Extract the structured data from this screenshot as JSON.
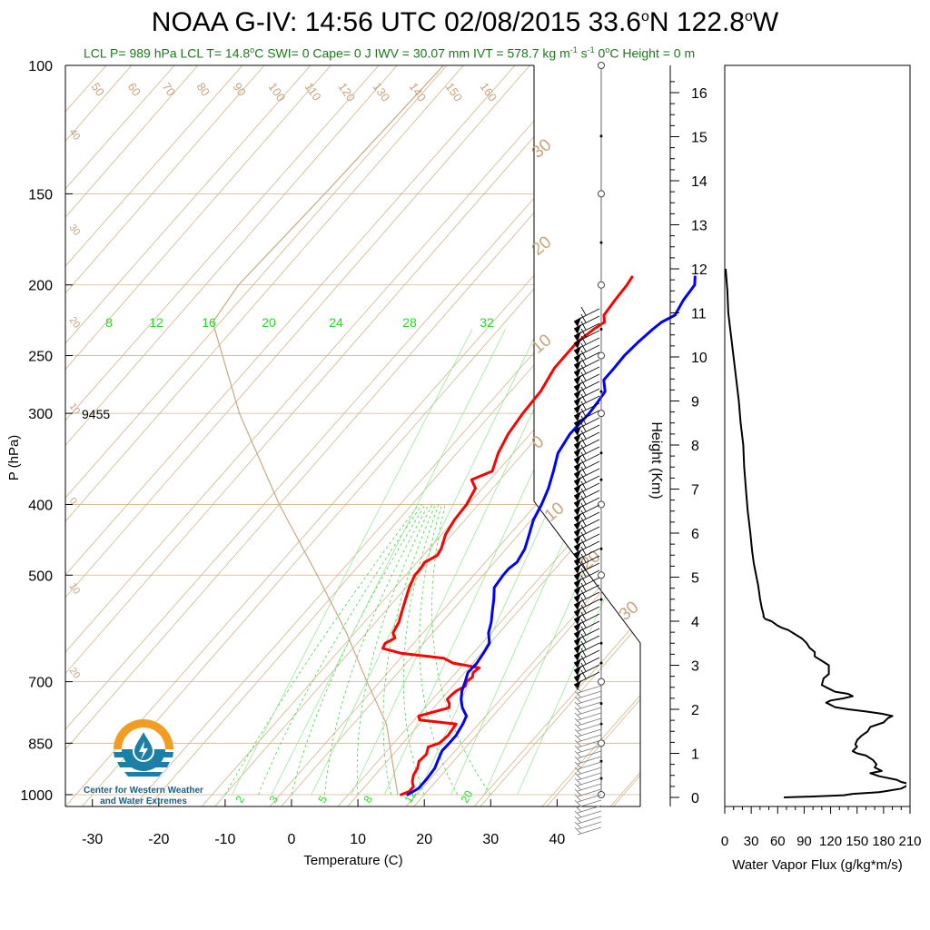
{
  "title": {
    "text_main": "NOAA G-IV: 14:56 UTC 02/08/2015  33.6",
    "deg1": "o",
    "lat_suffix": "N 122.8",
    "deg2": "o",
    "lon_suffix": "W"
  },
  "subtitle": {
    "lcl": "LCL P= 989 hPa  LCL T= 14.8",
    "lcl_unit": "C  SWI= 0  Cape= 0 J  IWV = 30.07 mm  IVT = 578.7 kg m",
    "ivt_exp1": "-1",
    "ivt_mid": " s",
    "ivt_exp2": "-1",
    "zero_c": "  0",
    "zero_c_unit": "C Height = 0 m"
  },
  "logo": {
    "line1": "Center for Western Weather",
    "line2": "and Water Extremes"
  },
  "colors": {
    "temperature": "#ff0000",
    "dewpoint": "#0000ff",
    "isotherm": "#d2b48c",
    "mixing_ratio": "#00cc00",
    "parcel": "#c8a883",
    "brown_label": "#c9a37f"
  },
  "chart_data": [
    {
      "type": "line",
      "name": "skew-t",
      "xlabel": "Temperature (C)",
      "ylabel": "P (hPa)",
      "xlim": [
        -35,
        45
      ],
      "ylim": [
        1050,
        100
      ],
      "y_scale": "log",
      "x_ticks": [
        "-30",
        "-20",
        "-10",
        "0",
        "10",
        "20",
        "30",
        "40"
      ],
      "y_ticks": [
        "100",
        "150",
        "200",
        "250",
        "300",
        "400",
        "500",
        "700",
        "850",
        "1000"
      ],
      "annotation": "9455",
      "isotherm_labels": [
        "50",
        "60",
        "70",
        "80",
        "90",
        "100",
        "110",
        "120",
        "130",
        "140",
        "150",
        "160"
      ],
      "dry_adiabat_left_labels": [
        "40",
        "30",
        "20",
        "10",
        "0",
        "10",
        "20"
      ],
      "dry_adiabat_right_labels": [
        "30",
        "20",
        "10",
        "0",
        "10",
        "20",
        "30"
      ],
      "mixing_ratio_top_labels": [
        "8",
        "12",
        "16",
        "20",
        "24",
        "28",
        "32"
      ],
      "mixing_ratio_bottom_labels": [
        "2",
        "3",
        "5",
        "8",
        "12",
        "20"
      ],
      "series": [
        {
          "name": "",
          "role": "temperature",
          "points": [
            [
              1000,
              16.5
            ],
            [
              990,
              17.3
            ],
            [
              975,
              17.3
            ],
            [
              960,
              16.5
            ],
            [
              940,
              15.8
            ],
            [
              920,
              15.5
            ],
            [
              900,
              14.8
            ],
            [
              880,
              15
            ],
            [
              860,
              14.3
            ],
            [
              850,
              15.5
            ],
            [
              830,
              15.8
            ],
            [
              800,
              15.5
            ],
            [
              790,
              9.5
            ],
            [
              780,
              8.8
            ],
            [
              770,
              10.5
            ],
            [
              760,
              12.3
            ],
            [
              750,
              11.8
            ],
            [
              740,
              10.9
            ],
            [
              730,
              11
            ],
            [
              720,
              11.2
            ],
            [
              710,
              11.9
            ],
            [
              700,
              11.5
            ],
            [
              690,
              11.8
            ],
            [
              680,
              11.3
            ],
            [
              670,
              11.6
            ],
            [
              660,
              7
            ],
            [
              650,
              5
            ],
            [
              640,
              -2
            ],
            [
              630,
              -5.5
            ],
            [
              620,
              -5.8
            ],
            [
              610,
              -5
            ],
            [
              600,
              -6
            ],
            [
              580,
              -6.5
            ],
            [
              560,
              -7.5
            ],
            [
              540,
              -8.5
            ],
            [
              520,
              -9.5
            ],
            [
              500,
              -10.3
            ],
            [
              490,
              -10.3
            ],
            [
              480,
              -10.5
            ],
            [
              470,
              -9.5
            ],
            [
              460,
              -9.8
            ],
            [
              440,
              -11
            ],
            [
              420,
              -11.6
            ],
            [
              400,
              -11.8
            ],
            [
              380,
              -12.6
            ],
            [
              370,
              -14.3
            ],
            [
              360,
              -12.3
            ],
            [
              340,
              -13.8
            ],
            [
              320,
              -14.8
            ],
            [
              300,
              -15.3
            ],
            [
              280,
              -15.5
            ],
            [
              260,
              -16.5
            ],
            [
              250,
              -16.5
            ],
            [
              240,
              -16.5
            ],
            [
              230,
              -15.7
            ],
            [
              225,
              -15.0
            ],
            [
              220,
              -16.0
            ],
            [
              210,
              -16.3
            ],
            [
              200,
              -16.5
            ],
            [
              195,
              -16.8
            ]
          ]
        },
        {
          "name": "",
          "role": "dewpoint",
          "points": [
            [
              1000,
              17.5
            ],
            [
              980,
              18.3
            ],
            [
              950,
              18.3
            ],
            [
              920,
              18.1
            ],
            [
              900,
              17.6
            ],
            [
              870,
              16.9
            ],
            [
              850,
              17
            ],
            [
              830,
              17
            ],
            [
              800,
              16.5
            ],
            [
              780,
              16
            ],
            [
              760,
              14.3
            ],
            [
              740,
              13
            ],
            [
              720,
              12
            ],
            [
              700,
              11.3
            ],
            [
              680,
              10.5
            ],
            [
              660,
              10.6
            ],
            [
              640,
              10.3
            ],
            [
              620,
              9.9
            ],
            [
              600,
              8.4
            ],
            [
              580,
              7.4
            ],
            [
              560,
              6.1
            ],
            [
              540,
              4.8
            ],
            [
              520,
              3.3
            ],
            [
              500,
              3
            ],
            [
              490,
              3
            ],
            [
              480,
              3.4
            ],
            [
              460,
              2.8
            ],
            [
              440,
              1.6
            ],
            [
              420,
              0.3
            ],
            [
              400,
              -0.5
            ],
            [
              380,
              -1.6
            ],
            [
              360,
              -3.1
            ],
            [
              340,
              -4.8
            ],
            [
              320,
              -5.5
            ],
            [
              300,
              -5.3
            ],
            [
              290,
              -5.5
            ],
            [
              280,
              -5.8
            ],
            [
              270,
              -7.5
            ],
            [
              260,
              -7.5
            ],
            [
              250,
              -7.6
            ],
            [
              240,
              -7.3
            ],
            [
              230,
              -6.8
            ],
            [
              225,
              -6.4
            ],
            [
              220,
              -5.3
            ],
            [
              210,
              -6.0
            ],
            [
              200,
              -6.3
            ],
            [
              195,
              -7.3
            ]
          ]
        },
        {
          "name": "",
          "role": "parcel",
          "points": [
            [
              1000,
              16.0
            ],
            [
              900,
              10.8
            ],
            [
              800,
              5.0
            ],
            [
              700,
              -3.5
            ],
            [
              600,
              -13
            ],
            [
              500,
              -25
            ],
            [
              400,
              -40
            ],
            [
              300,
              -58
            ],
            [
              225,
              -74
            ],
            [
              200,
              -75
            ],
            [
              150,
              -74
            ],
            [
              100,
              -73
            ]
          ]
        }
      ]
    },
    {
      "type": "line",
      "name": "water-vapor-flux",
      "xlabel": "Water Vapor Flux (g/kg*m/s)",
      "ylabel": "Height (Km)",
      "xlim": [
        0,
        210
      ],
      "ylim": [
        0,
        16.5
      ],
      "x_ticks": [
        "0",
        "30",
        "60",
        "90",
        "120",
        "150",
        "180",
        "210"
      ],
      "y_ticks": [
        "0",
        "1",
        "2",
        "3",
        "4",
        "5",
        "6",
        "7",
        "8",
        "9",
        "10",
        "11",
        "12",
        "13",
        "14",
        "15",
        "16"
      ],
      "series": [
        {
          "name": "",
          "points": [
            [
              0.0,
              67
            ],
            [
              0.02,
              100
            ],
            [
              0.05,
              135
            ],
            [
              0.08,
              145
            ],
            [
              0.12,
              175
            ],
            [
              0.15,
              185
            ],
            [
              0.2,
              200
            ],
            [
              0.25,
              205
            ],
            [
              0.3,
              210
            ],
            [
              0.35,
              200
            ],
            [
              0.4,
              195
            ],
            [
              0.48,
              175
            ],
            [
              0.55,
              165
            ],
            [
              0.6,
              178
            ],
            [
              0.68,
              170
            ],
            [
              0.75,
              172
            ],
            [
              0.85,
              168
            ],
            [
              0.95,
              160
            ],
            [
              1.0,
              150
            ],
            [
              1.05,
              145
            ],
            [
              1.15,
              150
            ],
            [
              1.2,
              148
            ],
            [
              1.3,
              150
            ],
            [
              1.4,
              155
            ],
            [
              1.5,
              162
            ],
            [
              1.6,
              165
            ],
            [
              1.7,
              180
            ],
            [
              1.8,
              185
            ],
            [
              1.85,
              190
            ],
            [
              1.9,
              178
            ],
            [
              1.95,
              160
            ],
            [
              2.0,
              140
            ],
            [
              2.05,
              125
            ],
            [
              2.1,
              120
            ],
            [
              2.15,
              115
            ],
            [
              2.2,
              120
            ],
            [
              2.25,
              135
            ],
            [
              2.3,
              145
            ],
            [
              2.35,
              140
            ],
            [
              2.4,
              125
            ],
            [
              2.45,
              120
            ],
            [
              2.5,
              115
            ],
            [
              2.55,
              110
            ],
            [
              2.7,
              112
            ],
            [
              2.8,
              118
            ],
            [
              3.0,
              118
            ],
            [
              3.1,
              110
            ],
            [
              3.2,
              102
            ],
            [
              3.3,
              102
            ],
            [
              3.4,
              96
            ],
            [
              3.5,
              93
            ],
            [
              3.6,
              88
            ],
            [
              3.7,
              80
            ],
            [
              3.8,
              72
            ],
            [
              3.85,
              65
            ],
            [
              3.9,
              60
            ],
            [
              4.0,
              53
            ],
            [
              4.05,
              46
            ],
            [
              4.1,
              44
            ],
            [
              4.15,
              44
            ],
            [
              4.3,
              42
            ],
            [
              4.5,
              40
            ],
            [
              4.8,
              38
            ],
            [
              5.0,
              36
            ],
            [
              5.3,
              33
            ],
            [
              5.6,
              31
            ],
            [
              6.0,
              29
            ],
            [
              6.5,
              26
            ],
            [
              7.0,
              24
            ],
            [
              7.5,
              22
            ],
            [
              8.0,
              21
            ],
            [
              8.5,
              18
            ],
            [
              9.0,
              16
            ],
            [
              9.5,
              13
            ],
            [
              10.0,
              10
            ],
            [
              10.5,
              7
            ],
            [
              11.0,
              4
            ],
            [
              11.5,
              3
            ],
            [
              12.0,
              1
            ]
          ]
        }
      ]
    }
  ]
}
